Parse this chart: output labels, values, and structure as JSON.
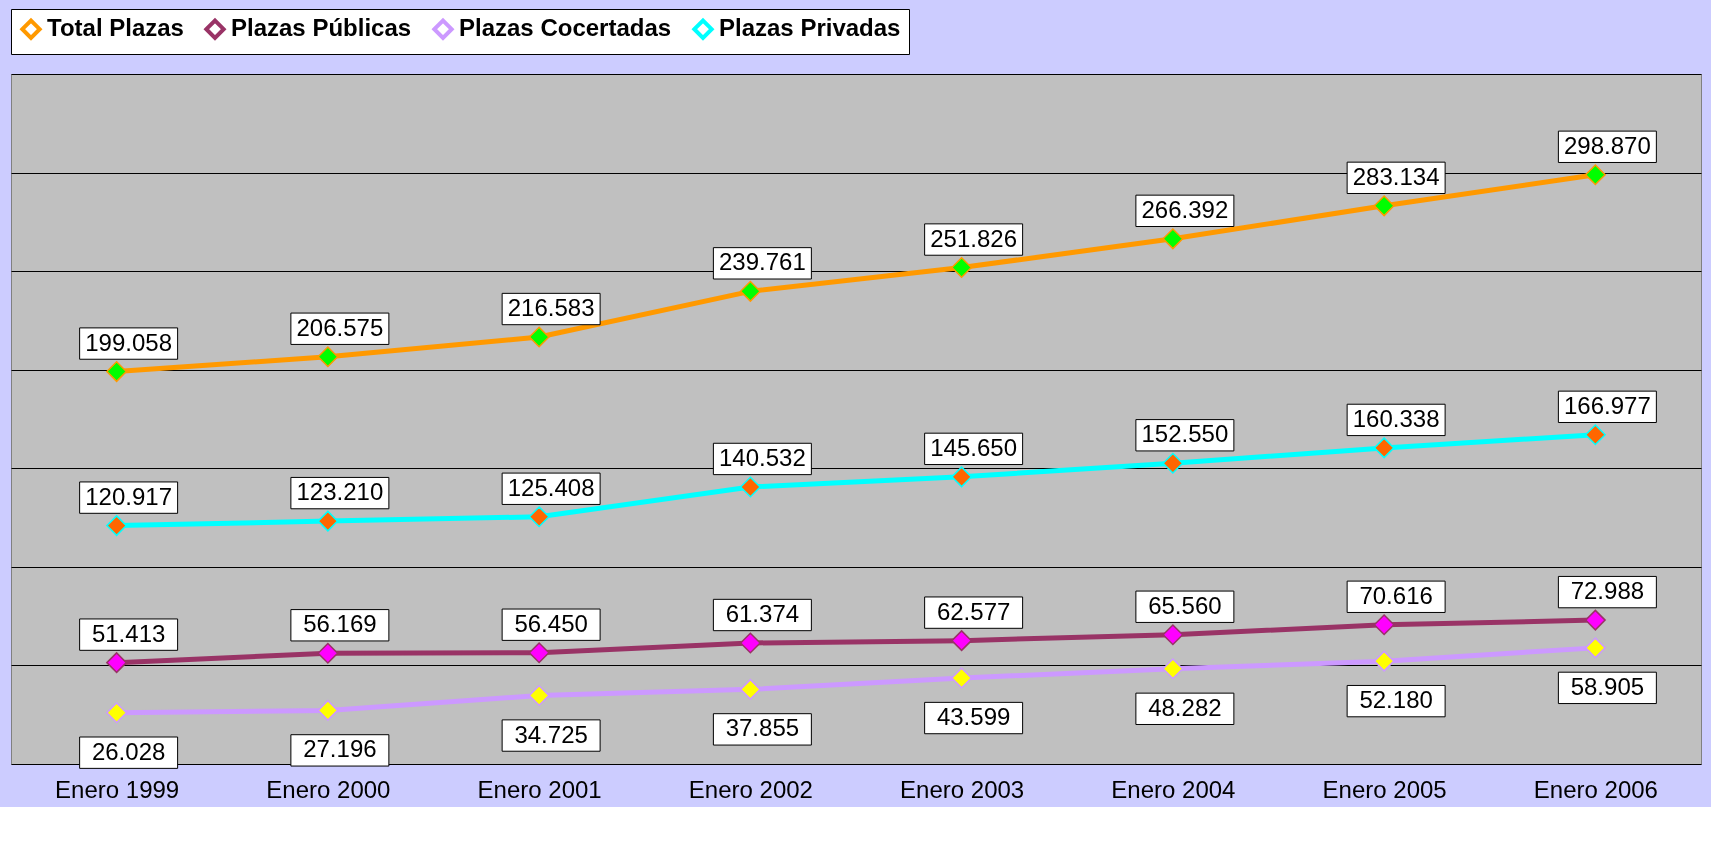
{
  "chart_data": {
    "type": "line",
    "categories": [
      "Enero 1999",
      "Enero 2000",
      "Enero 2001",
      "Enero 2002",
      "Enero 2003",
      "Enero 2004",
      "Enero 2005",
      "Enero 2006"
    ],
    "series": [
      {
        "name": "Total Plazas",
        "color": "#ff9900",
        "colors": [
          "#00ff00",
          "#00ff00",
          "#00ff00",
          "#00ff00",
          "#00ff00",
          "#00ff00",
          "#00ff00",
          "#00ff00"
        ],
        "values": [
          199058,
          206575,
          216583,
          239761,
          251826,
          266392,
          283134,
          298870
        ],
        "value_labels": [
          "199.058",
          "206.575",
          "216.583",
          "239.761",
          "251.826",
          "266.392",
          "283.134",
          "298.870"
        ]
      },
      {
        "name": "Plazas Públicas",
        "color": "#993366",
        "colors": [
          "#ff00ff",
          "#ff00ff",
          "#ff00ff",
          "#ff00ff",
          "#ff00ff",
          "#ff00ff",
          "#ff00ff",
          "#ff00ff"
        ],
        "values": [
          51413,
          56169,
          56450,
          61374,
          62577,
          65560,
          70616,
          72988
        ],
        "value_labels": [
          "51.413",
          "56.169",
          "56.450",
          "61.374",
          "62.577",
          "65.560",
          "70.616",
          "72.988"
        ]
      },
      {
        "name": "Plazas Cocertadas",
        "color": "#cc99ff",
        "colors": [
          "#ffff00",
          "#ffff00",
          "#ffff00",
          "#ffff00",
          "#ffff00",
          "#ffff00",
          "#ffff00",
          "#ffff00"
        ],
        "values": [
          26028,
          27196,
          34725,
          37855,
          43599,
          48282,
          52180,
          58905
        ],
        "value_labels": [
          "26.028",
          "27.196",
          "34.725",
          "37.855",
          "43.599",
          "48.282",
          "52.180",
          "58.905"
        ]
      },
      {
        "name": "Plazas Privadas",
        "color": "#00ffff",
        "colors": [
          "#ff6600",
          "#ff6600",
          "#ff6600",
          "#ff6600",
          "#ff6600",
          "#ff6600",
          "#ff6600",
          "#ff6600"
        ],
        "values": [
          120917,
          123210,
          125408,
          140532,
          145650,
          152550,
          160338,
          166977
        ],
        "value_labels": [
          "120.917",
          "123.210",
          "125.408",
          "140.532",
          "145.650",
          "152.550",
          "160.338",
          "166.977"
        ]
      }
    ],
    "ylim": [
      0,
      350000
    ],
    "yticks": [
      {
        "value": 0,
        "label": null
      },
      {
        "value": 50000,
        "label": null
      },
      {
        "value": 100000,
        "label": null
      },
      {
        "value": 150000,
        "label": null
      },
      {
        "value": 200000,
        "label": null
      },
      {
        "value": 250000,
        "label": null
      },
      {
        "value": 300000,
        "label": null
      },
      {
        "value": 350000,
        "label": null
      }
    ],
    "tick_labels": "x",
    "grid": "y",
    "legend": "top",
    "marker": "diamond",
    "line_style": "solid"
  }
}
